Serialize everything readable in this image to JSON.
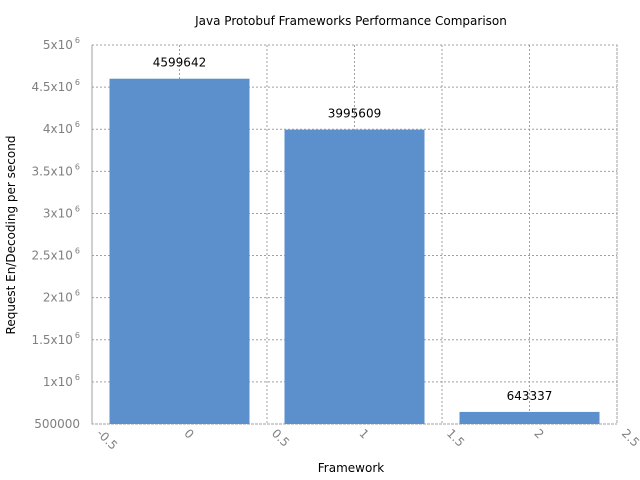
{
  "chart_data": {
    "type": "bar",
    "title": "Java Protobuf Frameworks Performance Comparison",
    "xlabel": "Framework",
    "ylabel": "Request En/Decoding per second",
    "x": [
      0,
      1,
      2
    ],
    "values": [
      4599642,
      3995609,
      643337
    ],
    "value_labels": [
      "4599642",
      "3995609",
      "643337"
    ],
    "bar_color": "#5b90cc",
    "xlim": [
      -0.5,
      2.5
    ],
    "ylim": [
      500000,
      5000000
    ],
    "x_ticks": [
      {
        "value": -0.5,
        "label": "-0.5"
      },
      {
        "value": 0,
        "label": "0"
      },
      {
        "value": 0.5,
        "label": "0.5"
      },
      {
        "value": 1,
        "label": "1"
      },
      {
        "value": 1.5,
        "label": "1.5"
      },
      {
        "value": 2,
        "label": "2"
      },
      {
        "value": 2.5,
        "label": "2.5"
      }
    ],
    "y_ticks": [
      {
        "value": 500000,
        "base": "500000",
        "exp": ""
      },
      {
        "value": 1000000,
        "base": "1x10",
        "exp": "6"
      },
      {
        "value": 1500000,
        "base": "1.5x10",
        "exp": "6"
      },
      {
        "value": 2000000,
        "base": "2x10",
        "exp": "6"
      },
      {
        "value": 2500000,
        "base": "2.5x10",
        "exp": "6"
      },
      {
        "value": 3000000,
        "base": "3x10",
        "exp": "6"
      },
      {
        "value": 3500000,
        "base": "3.5x10",
        "exp": "6"
      },
      {
        "value": 4000000,
        "base": "4x10",
        "exp": "6"
      },
      {
        "value": 4500000,
        "base": "4.5x10",
        "exp": "6"
      },
      {
        "value": 5000000,
        "base": "5x10",
        "exp": "6"
      }
    ],
    "grid": true,
    "legend": false
  }
}
